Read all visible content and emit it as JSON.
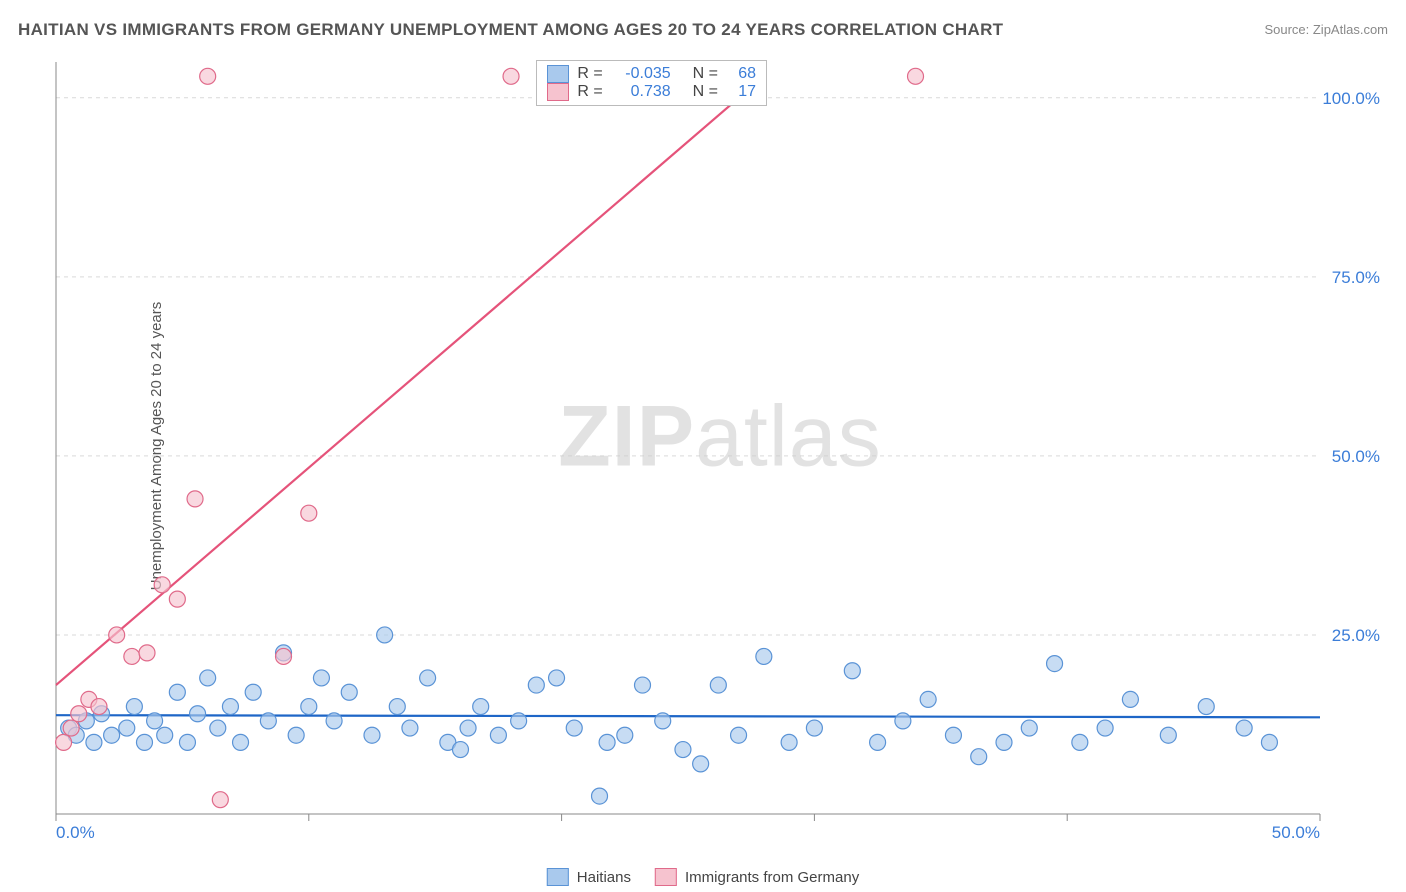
{
  "title": "HAITIAN VS IMMIGRANTS FROM GERMANY UNEMPLOYMENT AMONG AGES 20 TO 24 YEARS CORRELATION CHART",
  "source": "Source: ZipAtlas.com",
  "ylabel": "Unemployment Among Ages 20 to 24 years",
  "watermark_bold": "ZIP",
  "watermark_light": "atlas",
  "chart": {
    "type": "scatter",
    "background_color": "#ffffff",
    "grid_color": "#d9d9d9",
    "axis_color": "#888888",
    "tick_label_color": "#3b7dd8",
    "tick_fontsize": 17,
    "xlim": [
      0,
      50
    ],
    "ylim": [
      0,
      105
    ],
    "x_ticks": [
      0,
      10,
      20,
      30,
      40,
      50
    ],
    "x_tick_labels": [
      "0.0%",
      "",
      "",
      "",
      "",
      "50.0%"
    ],
    "y_ticks": [
      25,
      50,
      75,
      100
    ],
    "y_tick_labels": [
      "25.0%",
      "50.0%",
      "75.0%",
      "100.0%"
    ],
    "marker_radius": 8,
    "marker_stroke_width": 1.2,
    "line_width": 2.2,
    "series": [
      {
        "name": "Haitians",
        "fill": "#a9c9ed",
        "stroke": "#5a93d6",
        "line_color": "#1e66c7",
        "R": "-0.035",
        "N": "68",
        "regression": {
          "x1": 0,
          "y1": 13.8,
          "x2": 50,
          "y2": 13.5
        },
        "points": [
          [
            0.5,
            12
          ],
          [
            0.8,
            11
          ],
          [
            1.2,
            13
          ],
          [
            1.5,
            10
          ],
          [
            1.8,
            14
          ],
          [
            2.2,
            11
          ],
          [
            2.8,
            12
          ],
          [
            3.1,
            15
          ],
          [
            3.5,
            10
          ],
          [
            3.9,
            13
          ],
          [
            4.3,
            11
          ],
          [
            4.8,
            17
          ],
          [
            5.2,
            10
          ],
          [
            5.6,
            14
          ],
          [
            6.0,
            19
          ],
          [
            6.4,
            12
          ],
          [
            6.9,
            15
          ],
          [
            7.3,
            10
          ],
          [
            7.8,
            17
          ],
          [
            8.4,
            13
          ],
          [
            9.0,
            22.5
          ],
          [
            9.5,
            11
          ],
          [
            10.0,
            15
          ],
          [
            10.5,
            19
          ],
          [
            11.0,
            13
          ],
          [
            11.6,
            17
          ],
          [
            12.5,
            11
          ],
          [
            13.0,
            25
          ],
          [
            13.5,
            15
          ],
          [
            14.0,
            12
          ],
          [
            14.7,
            19
          ],
          [
            15.5,
            10
          ],
          [
            16.0,
            9
          ],
          [
            16.3,
            12
          ],
          [
            16.8,
            15
          ],
          [
            17.5,
            11
          ],
          [
            18.3,
            13
          ],
          [
            19.0,
            18
          ],
          [
            19.8,
            19
          ],
          [
            20.5,
            12
          ],
          [
            21.5,
            2.5
          ],
          [
            21.8,
            10
          ],
          [
            22.5,
            11
          ],
          [
            23.2,
            18
          ],
          [
            24.0,
            13
          ],
          [
            24.8,
            9
          ],
          [
            25.5,
            7
          ],
          [
            26.2,
            18
          ],
          [
            27.0,
            11
          ],
          [
            28.0,
            22
          ],
          [
            29.0,
            10
          ],
          [
            30.0,
            12
          ],
          [
            31.5,
            20
          ],
          [
            32.5,
            10
          ],
          [
            33.5,
            13
          ],
          [
            34.5,
            16
          ],
          [
            35.5,
            11
          ],
          [
            36.5,
            8
          ],
          [
            37.5,
            10
          ],
          [
            38.5,
            12
          ],
          [
            39.5,
            21
          ],
          [
            40.5,
            10
          ],
          [
            41.5,
            12
          ],
          [
            42.5,
            16
          ],
          [
            44.0,
            11
          ],
          [
            45.5,
            15
          ],
          [
            47.0,
            12
          ],
          [
            48.0,
            10
          ]
        ]
      },
      {
        "name": "Immigrants from Germany",
        "fill": "#f6c3cf",
        "stroke": "#e06a8a",
        "line_color": "#e5537a",
        "R": "0.738",
        "N": "17",
        "regression": {
          "x1": 0,
          "y1": 18,
          "x2": 28,
          "y2": 103
        },
        "points": [
          [
            0.3,
            10
          ],
          [
            0.6,
            12
          ],
          [
            0.9,
            14
          ],
          [
            1.3,
            16
          ],
          [
            1.7,
            15
          ],
          [
            2.4,
            25
          ],
          [
            3.0,
            22
          ],
          [
            3.6,
            22.5
          ],
          [
            4.2,
            32
          ],
          [
            4.8,
            30
          ],
          [
            5.5,
            44
          ],
          [
            6.5,
            2
          ],
          [
            9.0,
            22
          ],
          [
            10.0,
            42
          ],
          [
            6.0,
            103
          ],
          [
            18.0,
            103
          ],
          [
            34.0,
            103
          ]
        ]
      }
    ]
  },
  "legend_top": {
    "r_label": "R =",
    "n_label": "N =",
    "value_color": "#3b7dd8",
    "label_color": "#444444"
  },
  "legend_bottom": [
    {
      "label": "Haitians",
      "fill": "#a9c9ed",
      "stroke": "#5a93d6"
    },
    {
      "label": "Immigrants from Germany",
      "fill": "#f6c3cf",
      "stroke": "#e06a8a"
    }
  ]
}
